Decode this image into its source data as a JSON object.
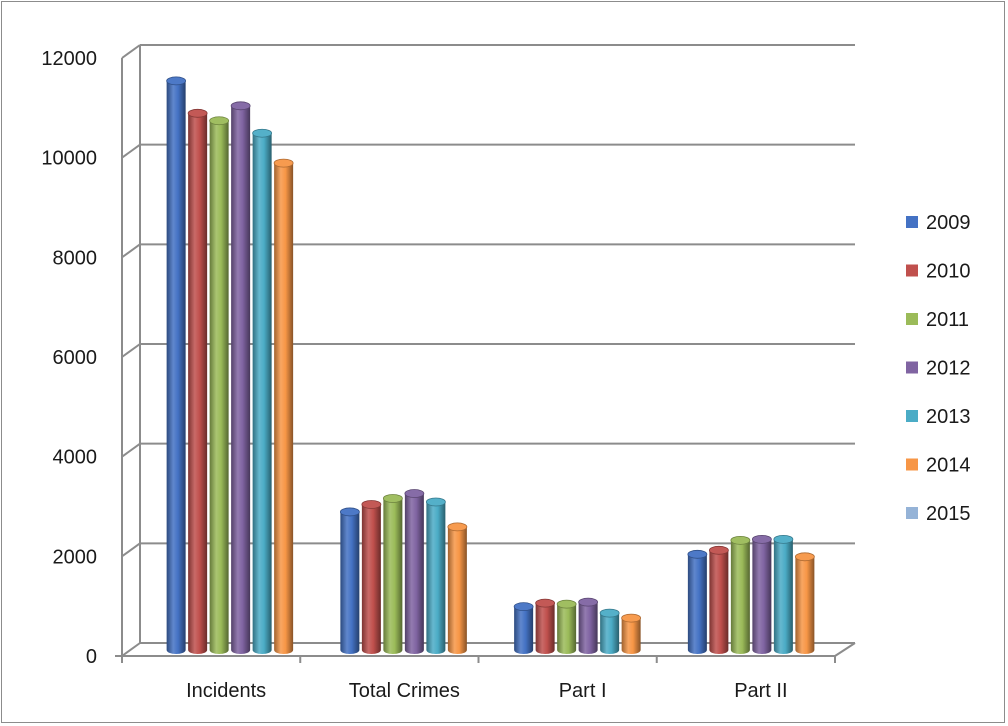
{
  "chart_data": {
    "type": "bar",
    "title": "",
    "xlabel": "",
    "ylabel": "",
    "categories": [
      "Incidents",
      "Total Crimes",
      "Part I",
      "Part II"
    ],
    "ylim": [
      0,
      12000
    ],
    "yticks": [
      0,
      2000,
      4000,
      6000,
      8000,
      10000,
      12000
    ],
    "grid": true,
    "legend_position": "right",
    "series": [
      {
        "name": "2009",
        "color": "#4472c4",
        "values": [
          11400,
          2750,
          850,
          1900
        ]
      },
      {
        "name": "2010",
        "color": "#c0504d",
        "values": [
          10750,
          2900,
          920,
          1980
        ]
      },
      {
        "name": "2011",
        "color": "#9bbb59",
        "values": [
          10600,
          3020,
          900,
          2180
        ]
      },
      {
        "name": "2012",
        "color": "#8064a2",
        "values": [
          10900,
          3120,
          940,
          2200
        ]
      },
      {
        "name": "2013",
        "color": "#4bacc6",
        "values": [
          10350,
          2950,
          720,
          2200
        ]
      },
      {
        "name": "2014",
        "color": "#f79646",
        "values": [
          9750,
          2450,
          620,
          1850
        ]
      },
      {
        "name": "2015",
        "color": "#95b3d7",
        "values": [
          0,
          0,
          0,
          0
        ]
      }
    ]
  }
}
